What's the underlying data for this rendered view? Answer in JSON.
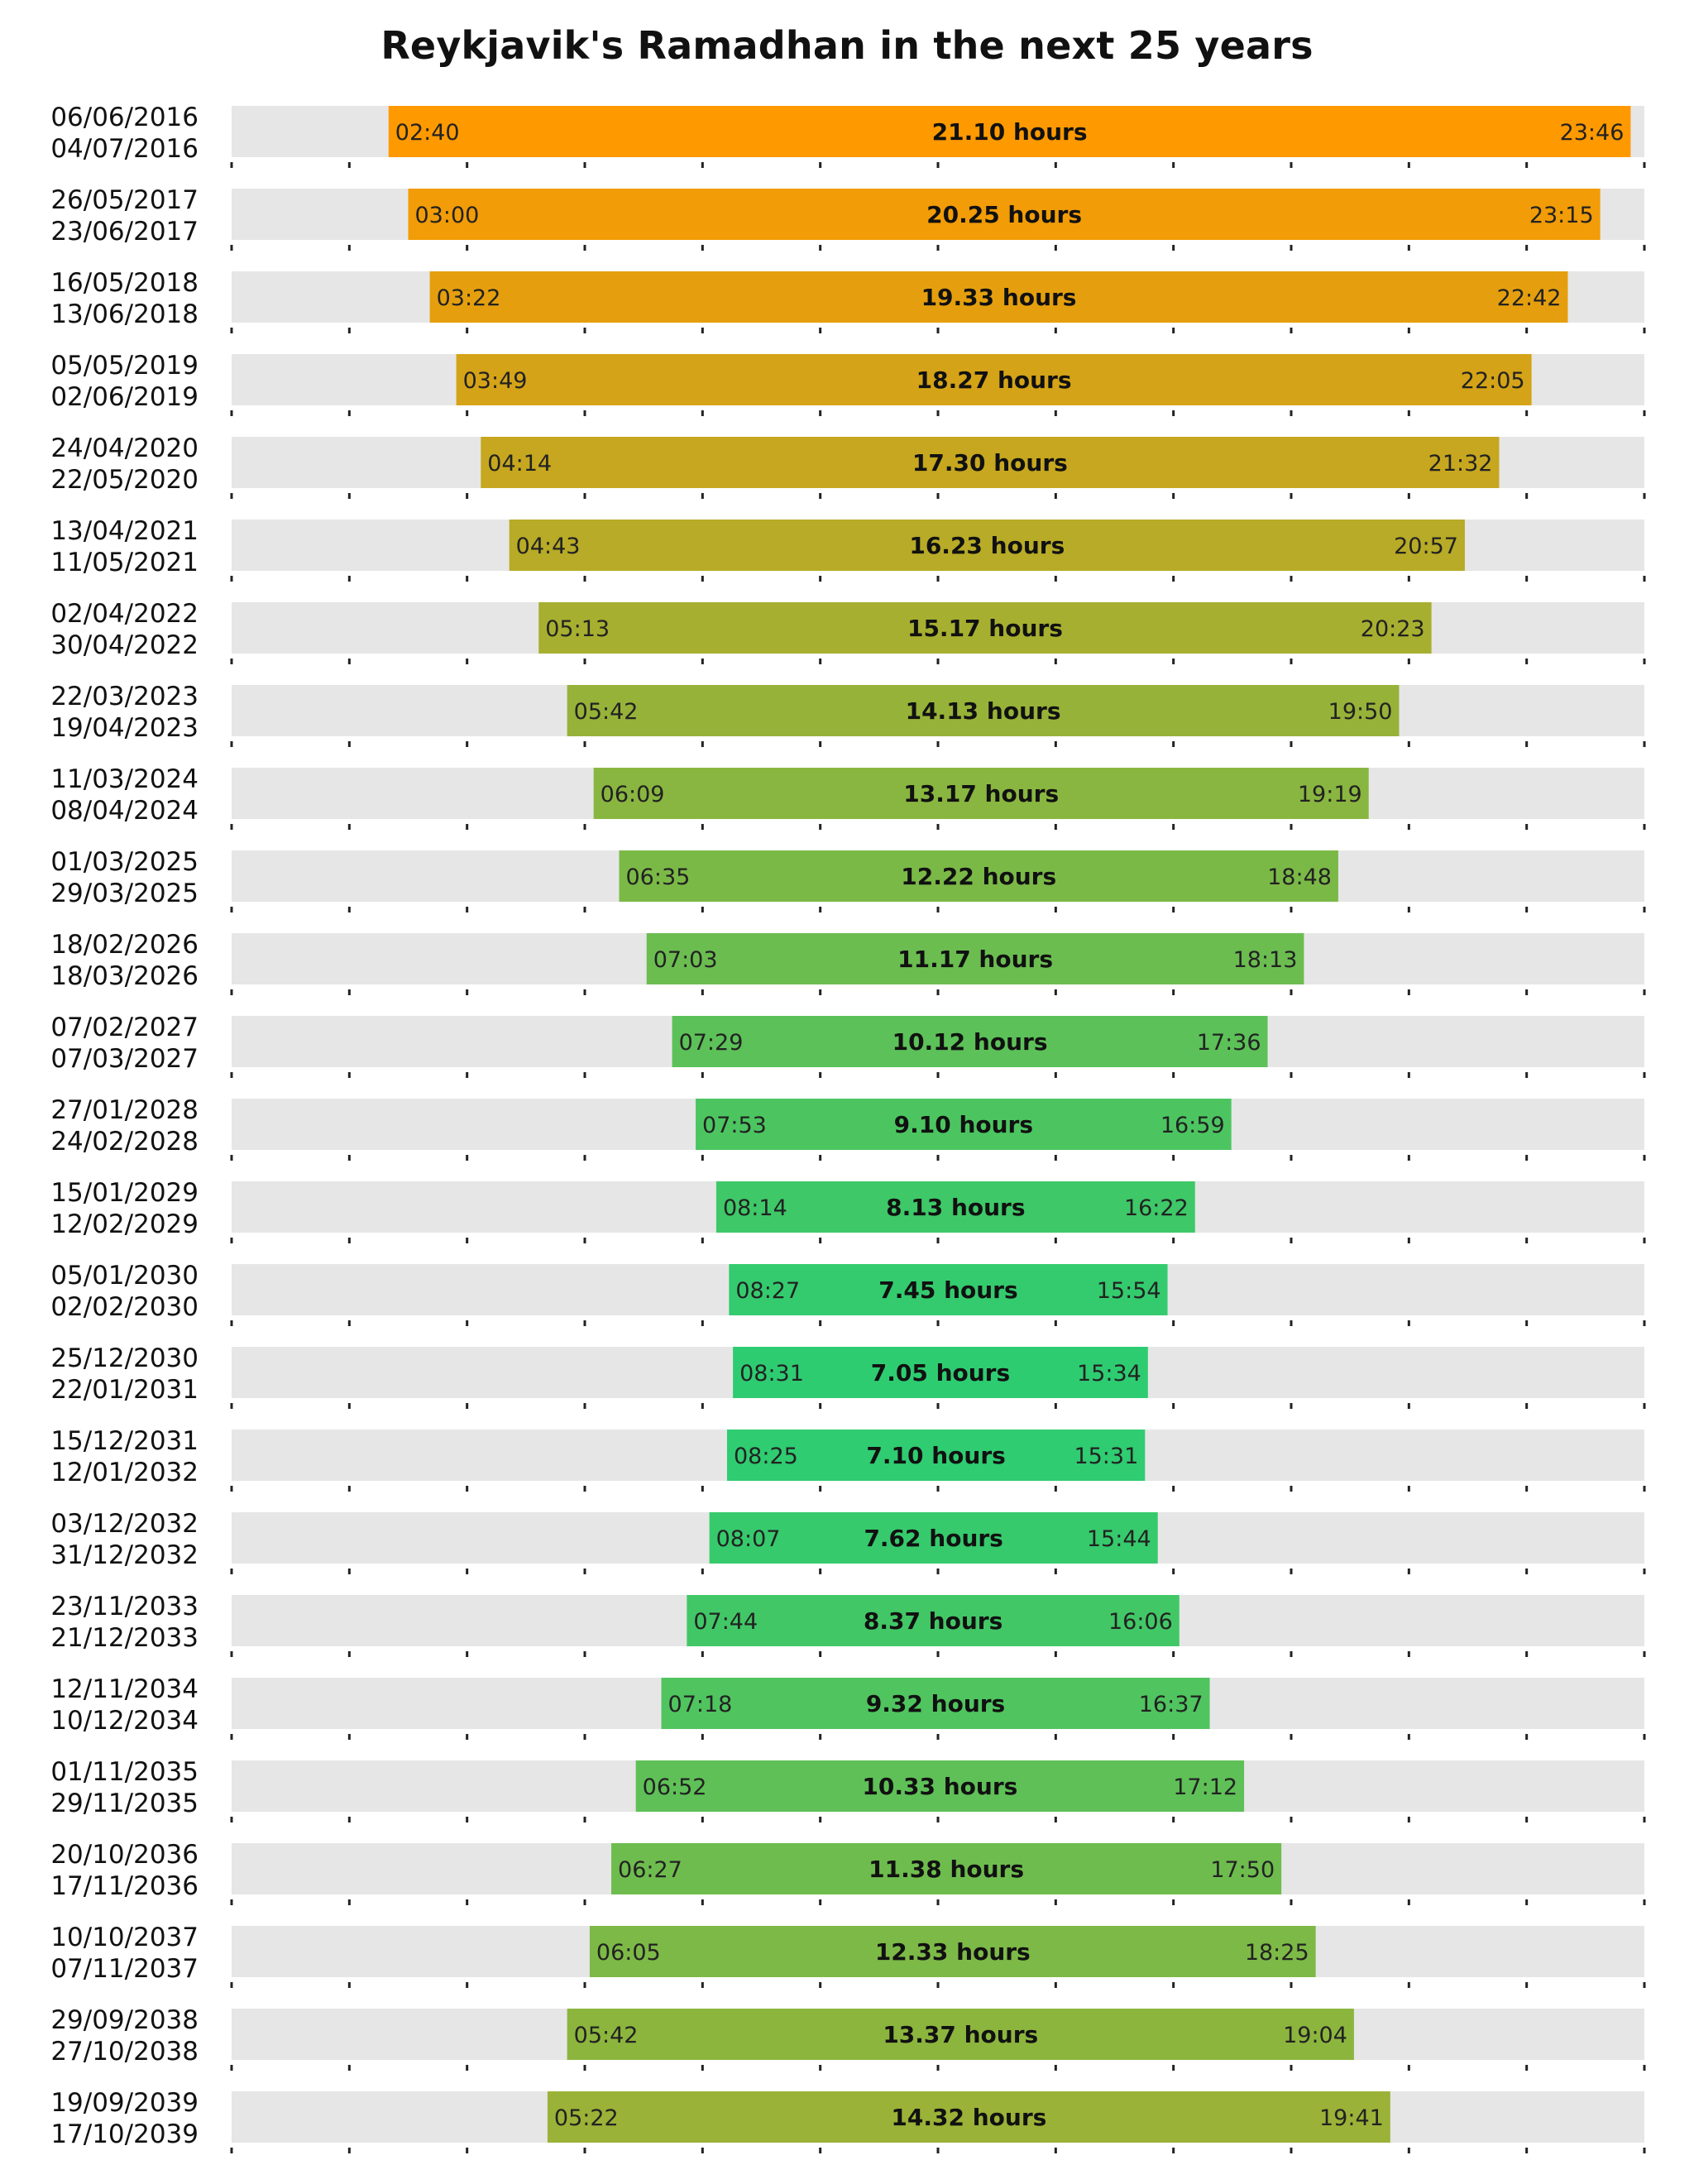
{
  "chart_data": {
    "type": "bar",
    "subtype": "floating-range",
    "title": "Reykjavik's Ramadhan in the next 25 years",
    "xlabel": "",
    "ylabel": "",
    "x_range_hours": [
      0,
      24
    ],
    "x_tick_step_hours": 2,
    "grid": false,
    "legend": "none",
    "hours_suffix": " hours",
    "colors": {
      "longest": "#FF9900",
      "shortest": "#2ECC71",
      "track": "#E6E6E6",
      "tick": "#222222"
    },
    "rows": [
      {
        "start_date": "06/06/2016",
        "end_date": "04/07/2016",
        "begin": "02:40",
        "end": "23:46",
        "hours": "21.10"
      },
      {
        "start_date": "26/05/2017",
        "end_date": "23/06/2017",
        "begin": "03:00",
        "end": "23:15",
        "hours": "20.25"
      },
      {
        "start_date": "16/05/2018",
        "end_date": "13/06/2018",
        "begin": "03:22",
        "end": "22:42",
        "hours": "19.33"
      },
      {
        "start_date": "05/05/2019",
        "end_date": "02/06/2019",
        "begin": "03:49",
        "end": "22:05",
        "hours": "18.27"
      },
      {
        "start_date": "24/04/2020",
        "end_date": "22/05/2020",
        "begin": "04:14",
        "end": "21:32",
        "hours": "17.30"
      },
      {
        "start_date": "13/04/2021",
        "end_date": "11/05/2021",
        "begin": "04:43",
        "end": "20:57",
        "hours": "16.23"
      },
      {
        "start_date": "02/04/2022",
        "end_date": "30/04/2022",
        "begin": "05:13",
        "end": "20:23",
        "hours": "15.17"
      },
      {
        "start_date": "22/03/2023",
        "end_date": "19/04/2023",
        "begin": "05:42",
        "end": "19:50",
        "hours": "14.13"
      },
      {
        "start_date": "11/03/2024",
        "end_date": "08/04/2024",
        "begin": "06:09",
        "end": "19:19",
        "hours": "13.17"
      },
      {
        "start_date": "01/03/2025",
        "end_date": "29/03/2025",
        "begin": "06:35",
        "end": "18:48",
        "hours": "12.22"
      },
      {
        "start_date": "18/02/2026",
        "end_date": "18/03/2026",
        "begin": "07:03",
        "end": "18:13",
        "hours": "11.17"
      },
      {
        "start_date": "07/02/2027",
        "end_date": "07/03/2027",
        "begin": "07:29",
        "end": "17:36",
        "hours": "10.12"
      },
      {
        "start_date": "27/01/2028",
        "end_date": "24/02/2028",
        "begin": "07:53",
        "end": "16:59",
        "hours": "9.10"
      },
      {
        "start_date": "15/01/2029",
        "end_date": "12/02/2029",
        "begin": "08:14",
        "end": "16:22",
        "hours": "8.13"
      },
      {
        "start_date": "05/01/2030",
        "end_date": "02/02/2030",
        "begin": "08:27",
        "end": "15:54",
        "hours": "7.45"
      },
      {
        "start_date": "25/12/2030",
        "end_date": "22/01/2031",
        "begin": "08:31",
        "end": "15:34",
        "hours": "7.05"
      },
      {
        "start_date": "15/12/2031",
        "end_date": "12/01/2032",
        "begin": "08:25",
        "end": "15:31",
        "hours": "7.10"
      },
      {
        "start_date": "03/12/2032",
        "end_date": "31/12/2032",
        "begin": "08:07",
        "end": "15:44",
        "hours": "7.62"
      },
      {
        "start_date": "23/11/2033",
        "end_date": "21/12/2033",
        "begin": "07:44",
        "end": "16:06",
        "hours": "8.37"
      },
      {
        "start_date": "12/11/2034",
        "end_date": "10/12/2034",
        "begin": "07:18",
        "end": "16:37",
        "hours": "9.32"
      },
      {
        "start_date": "01/11/2035",
        "end_date": "29/11/2035",
        "begin": "06:52",
        "end": "17:12",
        "hours": "10.33"
      },
      {
        "start_date": "20/10/2036",
        "end_date": "17/11/2036",
        "begin": "06:27",
        "end": "17:50",
        "hours": "11.38"
      },
      {
        "start_date": "10/10/2037",
        "end_date": "07/11/2037",
        "begin": "06:05",
        "end": "18:25",
        "hours": "12.33"
      },
      {
        "start_date": "29/09/2038",
        "end_date": "27/10/2038",
        "begin": "05:42",
        "end": "19:04",
        "hours": "13.37"
      },
      {
        "start_date": "19/09/2039",
        "end_date": "17/10/2039",
        "begin": "05:22",
        "end": "19:41",
        "hours": "14.32"
      }
    ]
  }
}
